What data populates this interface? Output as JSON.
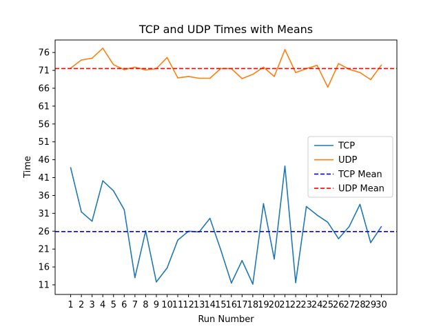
{
  "chart_data": {
    "type": "line",
    "title": "TCP and UDP Times with Means",
    "xlabel": "Run Number",
    "ylabel": "Time",
    "x": [
      1,
      2,
      3,
      4,
      5,
      6,
      7,
      8,
      9,
      10,
      11,
      12,
      13,
      14,
      15,
      16,
      17,
      18,
      19,
      20,
      21,
      22,
      23,
      24,
      25,
      26,
      27,
      28,
      29,
      30
    ],
    "xlim": [
      -0.45,
      31.45
    ],
    "ylim": [
      8.3,
      79.5
    ],
    "yticks": [
      11,
      16,
      21,
      26,
      31,
      36,
      41,
      46,
      51,
      56,
      61,
      66,
      71,
      76
    ],
    "grid": false,
    "legend_position": "center-right",
    "series": [
      {
        "name": "TCP",
        "style": "solid",
        "color": "#1f77b4",
        "values": [
          43.8,
          31.4,
          28.8,
          40.1,
          37.3,
          32.0,
          13.0,
          26.1,
          11.8,
          15.7,
          23.5,
          26.0,
          25.8,
          29.6,
          20.9,
          11.5,
          17.8,
          11.2,
          33.7,
          18.2,
          44.2,
          11.6,
          32.9,
          30.5,
          28.5,
          23.9,
          27.3,
          33.5,
          22.8,
          27.3
        ]
      },
      {
        "name": "UDP",
        "style": "solid",
        "color": "#ff7f0e",
        "values": [
          71.6,
          73.9,
          74.4,
          77.2,
          72.6,
          71.2,
          71.9,
          71.1,
          71.5,
          74.6,
          68.9,
          69.3,
          68.8,
          68.8,
          71.5,
          71.5,
          68.7,
          69.9,
          71.9,
          69.3,
          76.8,
          70.4,
          71.5,
          72.4,
          66.3,
          72.9,
          71.3,
          70.4,
          68.4,
          72.5
        ]
      },
      {
        "name": "TCP Mean",
        "style": "dashed",
        "color": "#0000ff",
        "value": 25.9
      },
      {
        "name": "UDP Mean",
        "style": "dashed",
        "color": "#ff0000",
        "value": 71.5
      }
    ]
  }
}
